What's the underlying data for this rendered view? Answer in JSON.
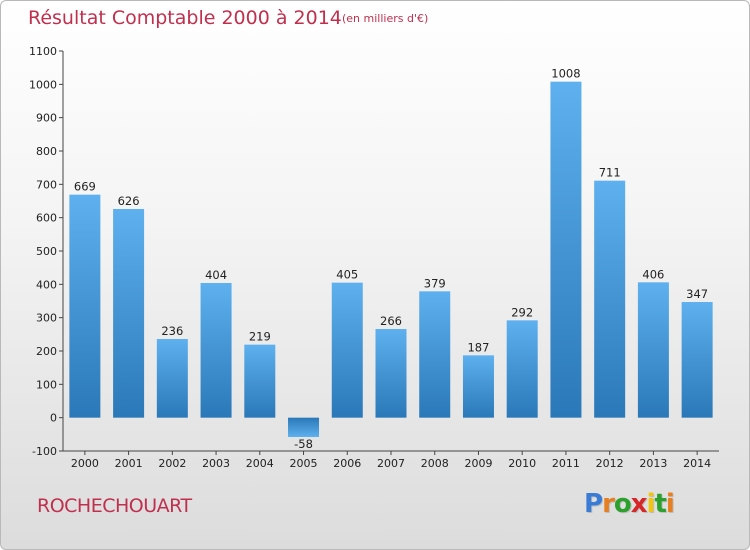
{
  "chart_data": {
    "type": "bar",
    "title": "Résultat Comptable 2000 à 2014",
    "subtitle": "(en milliers d'€)",
    "categories": [
      "2000",
      "2001",
      "2002",
      "2003",
      "2004",
      "2005",
      "2006",
      "2007",
      "2008",
      "2009",
      "2010",
      "2011",
      "2012",
      "2013",
      "2014"
    ],
    "values": [
      669,
      626,
      236,
      404,
      219,
      -58,
      405,
      266,
      379,
      187,
      292,
      1008,
      711,
      406,
      347
    ],
    "ylim": [
      -100,
      1100
    ],
    "yticks": [
      -100,
      0,
      100,
      200,
      300,
      400,
      500,
      600,
      700,
      800,
      900,
      1000,
      1100
    ],
    "grid": false,
    "bar_color": "#3a8fd6"
  },
  "footer": {
    "town": "ROCHECHOUART",
    "logo_letters": [
      "P",
      "r",
      "o",
      "x",
      "i",
      "t",
      "i"
    ],
    "logo_colors": [
      "#3a7bd5",
      "#e67e22",
      "#2ca02c",
      "#d62728",
      "#f1c40f",
      "#2ca02c",
      "#e67e22"
    ]
  }
}
